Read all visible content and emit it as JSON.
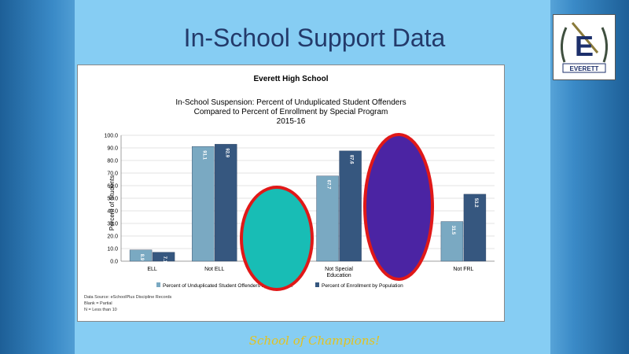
{
  "slide": {
    "title": "In-School Support Data",
    "footer": "School of Champions!",
    "logo_letter": "E",
    "logo_text": "EVERETT"
  },
  "colors": {
    "series1": "#7aa9c2",
    "series2": "#36577f",
    "teal_circle": "#18bdb5",
    "purple_circle": "#4b24a3",
    "circle_outline": "#e01818"
  },
  "chart_data": {
    "type": "bar",
    "school": "Everett High School",
    "title_lines": [
      "In-School Suspension: Percent of Unduplicated Student Offenders",
      "Compared to Percent of Enrollment by Special Program",
      "2015-16"
    ],
    "ylabel": "Percent of Students",
    "ylim": [
      0,
      100
    ],
    "yticks": [
      "0.0",
      "10.0",
      "20.0",
      "30.0",
      "40.0",
      "50.0",
      "60.0",
      "70.0",
      "80.0",
      "90.0",
      "100.0"
    ],
    "categories": [
      "ELL",
      "Not ELL",
      "",
      "Not Special Education",
      "",
      "Not FRL"
    ],
    "category_label_lines": [
      [
        "ELL"
      ],
      [
        "Not ELL"
      ],
      [
        ""
      ],
      [
        "Not Special",
        "Education"
      ],
      [
        ""
      ],
      [
        "Not FRL"
      ]
    ],
    "series": [
      {
        "name": "Percent of Unduplicated Student Offenders by Population",
        "values": [
          8.9,
          91.1,
          null,
          67.7,
          null,
          31.5
        ],
        "labels": [
          "8.9",
          "91.1",
          "",
          "67.7",
          "",
          "31.5"
        ]
      },
      {
        "name": "Percent of Enrollment by Population",
        "values": [
          7.1,
          92.9,
          null,
          87.6,
          null,
          53.2
        ],
        "labels": [
          "7.1",
          "92.9",
          "",
          "87.6",
          "",
          "53.2"
        ]
      }
    ],
    "notes": [
      "Data Source: eSchoolPlus Discipline Records",
      "Blank = Partial",
      "N = Less than 10"
    ],
    "grid": true,
    "legend_position": "bottom"
  }
}
